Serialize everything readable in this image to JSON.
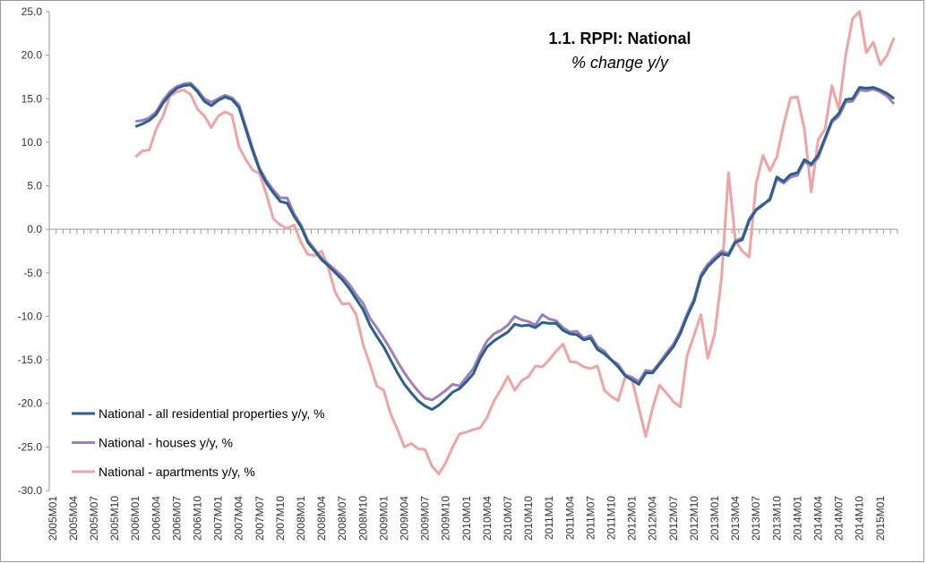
{
  "chart_data": {
    "type": "line",
    "title": "1.1. RPPI: National",
    "subtitle": "% change y/y",
    "categories": [
      "2005M01",
      null,
      null,
      "2005M04",
      null,
      null,
      "2005M07",
      null,
      null,
      "2005M10",
      null,
      null,
      "2006M01",
      null,
      null,
      "2006M04",
      null,
      null,
      "2006M07",
      null,
      null,
      "2006M10",
      null,
      null,
      "2007M01",
      null,
      null,
      "2007M04",
      null,
      null,
      "2007M07",
      null,
      null,
      "2007M10",
      null,
      null,
      "2008M01",
      null,
      null,
      "2008M04",
      null,
      null,
      "2008M07",
      null,
      null,
      "2008M10",
      null,
      null,
      "2009M01",
      null,
      null,
      "2009M04",
      null,
      null,
      "2009M07",
      null,
      null,
      "2009M10",
      null,
      null,
      "2010M01",
      null,
      null,
      "2010M04",
      null,
      null,
      "2010M07",
      null,
      null,
      "2010M10",
      null,
      null,
      "2011M01",
      null,
      null,
      "2011M04",
      null,
      null,
      "2011M07",
      null,
      null,
      "2011M10",
      null,
      null,
      "2012M01",
      null,
      null,
      "2012M04",
      null,
      null,
      "2012M07",
      null,
      null,
      "2012M10",
      null,
      null,
      "2013M01",
      null,
      null,
      "2013M04",
      null,
      null,
      "2013M07",
      null,
      null,
      "2013M10",
      null,
      null,
      "2014M01",
      null,
      null,
      "2014M04",
      null,
      null,
      "2014M07",
      null,
      null,
      "2014M10",
      null,
      null,
      "2015M01",
      null,
      null
    ],
    "series": [
      {
        "name": "National - all residential properties y/y, %",
        "color": "#2b5f8e",
        "values": [
          null,
          null,
          null,
          null,
          null,
          null,
          null,
          null,
          null,
          null,
          null,
          null,
          11.8,
          12.1,
          12.5,
          13.2,
          14.5,
          15.5,
          16.2,
          16.5,
          16.6,
          15.8,
          14.7,
          14.2,
          14.8,
          15.2,
          14.9,
          14.0,
          11.5,
          9.0,
          6.8,
          5.3,
          4.2,
          3.2,
          3.0,
          1.5,
          0.3,
          -1.5,
          -2.5,
          -3.5,
          -4.2,
          -5.0,
          -5.8,
          -6.8,
          -8.0,
          -9.2,
          -11.0,
          -12.3,
          -13.5,
          -15.0,
          -16.5,
          -17.8,
          -18.8,
          -19.7,
          -20.3,
          -20.7,
          -20.2,
          -19.5,
          -18.7,
          -18.3,
          -17.5,
          -16.6,
          -14.8,
          -13.5,
          -12.8,
          -12.3,
          -11.8,
          -10.9,
          -11.1,
          -11.0,
          -11.3,
          -10.7,
          -10.8,
          -10.8,
          -11.6,
          -12.0,
          -12.1,
          -12.7,
          -12.5,
          -13.8,
          -14.3,
          -15.0,
          -15.8,
          -16.8,
          -17.3,
          -17.8,
          -16.5,
          -16.5,
          -15.5,
          -14.5,
          -13.5,
          -12.0,
          -10.0,
          -8.3,
          -5.5,
          -4.3,
          -3.5,
          -2.8,
          -3.0,
          -1.5,
          -1.2,
          1.0,
          2.2,
          2.8,
          3.5,
          6.0,
          5.5,
          6.3,
          6.5,
          8.0,
          7.5,
          8.5,
          10.5,
          12.5,
          13.3,
          14.9,
          15.0,
          16.3,
          16.2,
          16.3,
          16.0,
          15.6,
          15.0
        ]
      },
      {
        "name": "National - houses y/y, %",
        "color": "#9d7fc0",
        "values": [
          null,
          null,
          null,
          null,
          null,
          null,
          null,
          null,
          null,
          null,
          null,
          null,
          12.4,
          12.5,
          12.8,
          13.5,
          14.8,
          15.8,
          16.4,
          16.7,
          16.8,
          16.0,
          15.0,
          14.6,
          15.0,
          15.4,
          15.1,
          14.3,
          11.8,
          9.3,
          7.0,
          5.6,
          4.5,
          3.6,
          3.6,
          1.8,
          0.5,
          -1.3,
          -2.3,
          -3.3,
          -4.0,
          -4.7,
          -5.4,
          -6.3,
          -7.5,
          -8.5,
          -10.2,
          -11.3,
          -12.5,
          -13.8,
          -15.2,
          -16.5,
          -17.6,
          -18.6,
          -19.4,
          -19.6,
          -19.1,
          -18.5,
          -17.8,
          -18.0,
          -17.0,
          -16.0,
          -14.3,
          -12.8,
          -12.0,
          -11.6,
          -11.0,
          -10.0,
          -10.4,
          -10.6,
          -11.0,
          -9.8,
          -10.3,
          -10.5,
          -11.3,
          -11.8,
          -11.7,
          -12.5,
          -12.2,
          -13.5,
          -14.0,
          -15.0,
          -15.5,
          -16.7,
          -17.0,
          -17.5,
          -16.2,
          -16.3,
          -15.3,
          -14.2,
          -13.2,
          -11.7,
          -9.7,
          -8.0,
          -5.2,
          -4.0,
          -3.2,
          -2.5,
          -2.8,
          -1.3,
          -1.0,
          1.2,
          2.3,
          2.9,
          3.3,
          5.8,
          5.3,
          6.0,
          6.2,
          7.8,
          7.3,
          8.2,
          10.3,
          12.3,
          13.0,
          14.6,
          14.7,
          16.0,
          15.9,
          16.1,
          15.8,
          15.3,
          14.4
        ]
      },
      {
        "name": "National - apartments y/y, %",
        "color": "#f0a3a3",
        "values": [
          null,
          null,
          null,
          null,
          null,
          null,
          null,
          null,
          null,
          null,
          null,
          null,
          8.3,
          9.0,
          9.1,
          11.5,
          13.0,
          15.3,
          15.8,
          16.0,
          15.5,
          13.8,
          13.0,
          11.7,
          13.0,
          13.5,
          13.1,
          9.5,
          8.0,
          6.8,
          6.4,
          4.0,
          1.2,
          0.5,
          0.1,
          0.5,
          -1.5,
          -2.9,
          -3.0,
          -2.5,
          -4.5,
          -7.3,
          -8.6,
          -8.5,
          -9.8,
          -13.2,
          -15.5,
          -18.0,
          -18.5,
          -21.2,
          -23.0,
          -25.0,
          -24.6,
          -25.2,
          -25.3,
          -27.2,
          -28.1,
          -26.8,
          -25.0,
          -23.5,
          -23.3,
          -23.0,
          -22.8,
          -21.6,
          -19.7,
          -18.4,
          -16.9,
          -18.5,
          -17.4,
          -16.9,
          -15.7,
          -15.8,
          -15.0,
          -14.0,
          -13.2,
          -15.2,
          -15.3,
          -15.8,
          -16.0,
          -15.7,
          -18.5,
          -19.2,
          -19.7,
          -17.0,
          -17.2,
          -20.5,
          -23.8,
          -20.5,
          -17.9,
          -18.8,
          -19.8,
          -20.4,
          -14.5,
          -12.2,
          -9.8,
          -14.8,
          -12.0,
          -5.5,
          6.5,
          -1.3,
          -2.5,
          -3.2,
          5.2,
          8.5,
          6.7,
          8.3,
          12.0,
          15.1,
          15.2,
          11.5,
          4.3,
          10.3,
          11.5,
          16.5,
          13.8,
          20.0,
          24.2,
          25.0,
          20.3,
          21.5,
          18.9,
          20.0,
          22.0
        ]
      }
    ],
    "ylim": [
      -30,
      25
    ],
    "yticks": [
      {
        "value": -30,
        "label": "-30.0"
      },
      {
        "value": -25,
        "label": "-25.0"
      },
      {
        "value": -20,
        "label": "-20.0"
      },
      {
        "value": -15,
        "label": "-15.0"
      },
      {
        "value": -10,
        "label": "-10.0"
      },
      {
        "value": -5,
        "label": "-5.0"
      },
      {
        "value": 0,
        "label": "0.0"
      },
      {
        "value": 5,
        "label": "5.0"
      },
      {
        "value": 10,
        "label": "10.0"
      },
      {
        "value": 15,
        "label": "15.0"
      },
      {
        "value": 20,
        "label": "20.0"
      },
      {
        "value": 25,
        "label": "25.0"
      }
    ],
    "legend": "bottom-left"
  }
}
